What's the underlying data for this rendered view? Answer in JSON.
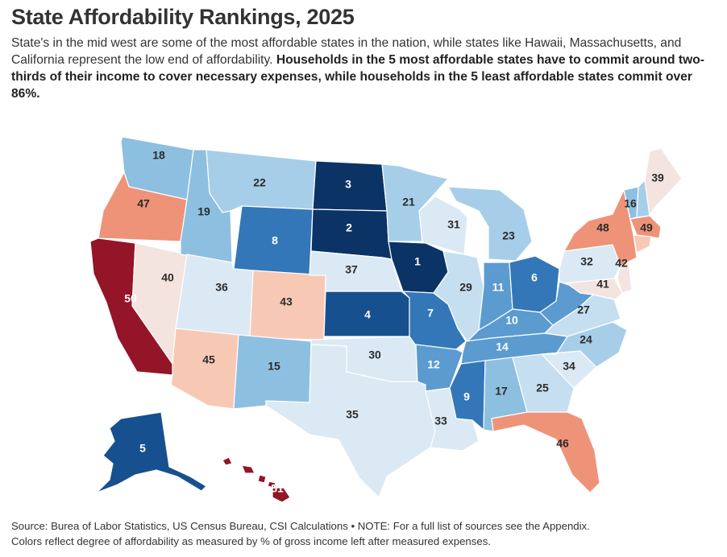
{
  "title": "State Affordability Rankings, 2025",
  "subtitle_plain": "State's in the mid west are some of the most affordable states in the nation, while states like Hawaii, Massachusetts, and California represent the low end of affordability. ",
  "subtitle_bold": "Households in the 5 most affordable states have to commit around two-thirds of their income to cover necessary expenses, while households in the 5 least affordable states commit over 86%.",
  "footer_line1": "Source: Burea of Labor Statistics, US Census Bureau, CSI Calculations • NOTE: For a full list of sources see the Appendix.",
  "footer_line2": "Colors reflect degree of affordability as measured by % of gross income left after measured expenses.",
  "colors": {
    "rank_1_3": "#0b3366",
    "rank_4_5": "#17508f",
    "rank_6_9": "#3377b8",
    "rank_10_14": "#5b9bd0",
    "rank_15_19": "#8dbfe0",
    "rank_20_24": "#a7cee8",
    "rank_25_29": "#c5dff0",
    "rank_30_37": "#dbe9f4",
    "rank_38_42": "#f3e4e0",
    "rank_43_45": "#f7c9b5",
    "rank_46_49": "#ee9378",
    "rank_50_51": "#941428"
  },
  "states": [
    {
      "name": "WA",
      "rank": "18"
    },
    {
      "name": "OR",
      "rank": "47"
    },
    {
      "name": "CA",
      "rank": "50"
    },
    {
      "name": "NV",
      "rank": "40"
    },
    {
      "name": "ID",
      "rank": "19"
    },
    {
      "name": "MT",
      "rank": "22"
    },
    {
      "name": "WY",
      "rank": "8"
    },
    {
      "name": "UT",
      "rank": "36"
    },
    {
      "name": "CO",
      "rank": "43"
    },
    {
      "name": "AZ",
      "rank": "45"
    },
    {
      "name": "NM",
      "rank": "15"
    },
    {
      "name": "ND",
      "rank": "3"
    },
    {
      "name": "SD",
      "rank": "2"
    },
    {
      "name": "NE",
      "rank": "37"
    },
    {
      "name": "KS",
      "rank": "4"
    },
    {
      "name": "OK",
      "rank": "30"
    },
    {
      "name": "TX",
      "rank": "35"
    },
    {
      "name": "MN",
      "rank": "21"
    },
    {
      "name": "IA",
      "rank": "1"
    },
    {
      "name": "MO",
      "rank": "7"
    },
    {
      "name": "AR",
      "rank": "12"
    },
    {
      "name": "LA",
      "rank": "33"
    },
    {
      "name": "WI",
      "rank": "31"
    },
    {
      "name": "IL",
      "rank": "29"
    },
    {
      "name": "MI",
      "rank": "23"
    },
    {
      "name": "IN",
      "rank": "11"
    },
    {
      "name": "OH",
      "rank": "6"
    },
    {
      "name": "KY",
      "rank": "10"
    },
    {
      "name": "TN",
      "rank": "14"
    },
    {
      "name": "MS",
      "rank": "9"
    },
    {
      "name": "AL",
      "rank": "17"
    },
    {
      "name": "GA",
      "rank": "25"
    },
    {
      "name": "FL",
      "rank": "46"
    },
    {
      "name": "SC",
      "rank": "34"
    },
    {
      "name": "NC",
      "rank": "24"
    },
    {
      "name": "VA",
      "rank": "27"
    },
    {
      "name": "WV",
      "rank": ""
    },
    {
      "name": "PA",
      "rank": "32"
    },
    {
      "name": "NY",
      "rank": "48"
    },
    {
      "name": "VT",
      "rank": "16"
    },
    {
      "name": "NH",
      "rank": ""
    },
    {
      "name": "ME",
      "rank": "39"
    },
    {
      "name": "MA",
      "rank": "49"
    },
    {
      "name": "CT",
      "rank": ""
    },
    {
      "name": "NJ",
      "rank": "42"
    },
    {
      "name": "MD",
      "rank": "41"
    },
    {
      "name": "AK",
      "rank": "5"
    },
    {
      "name": "HI",
      "rank": "51"
    }
  ]
}
